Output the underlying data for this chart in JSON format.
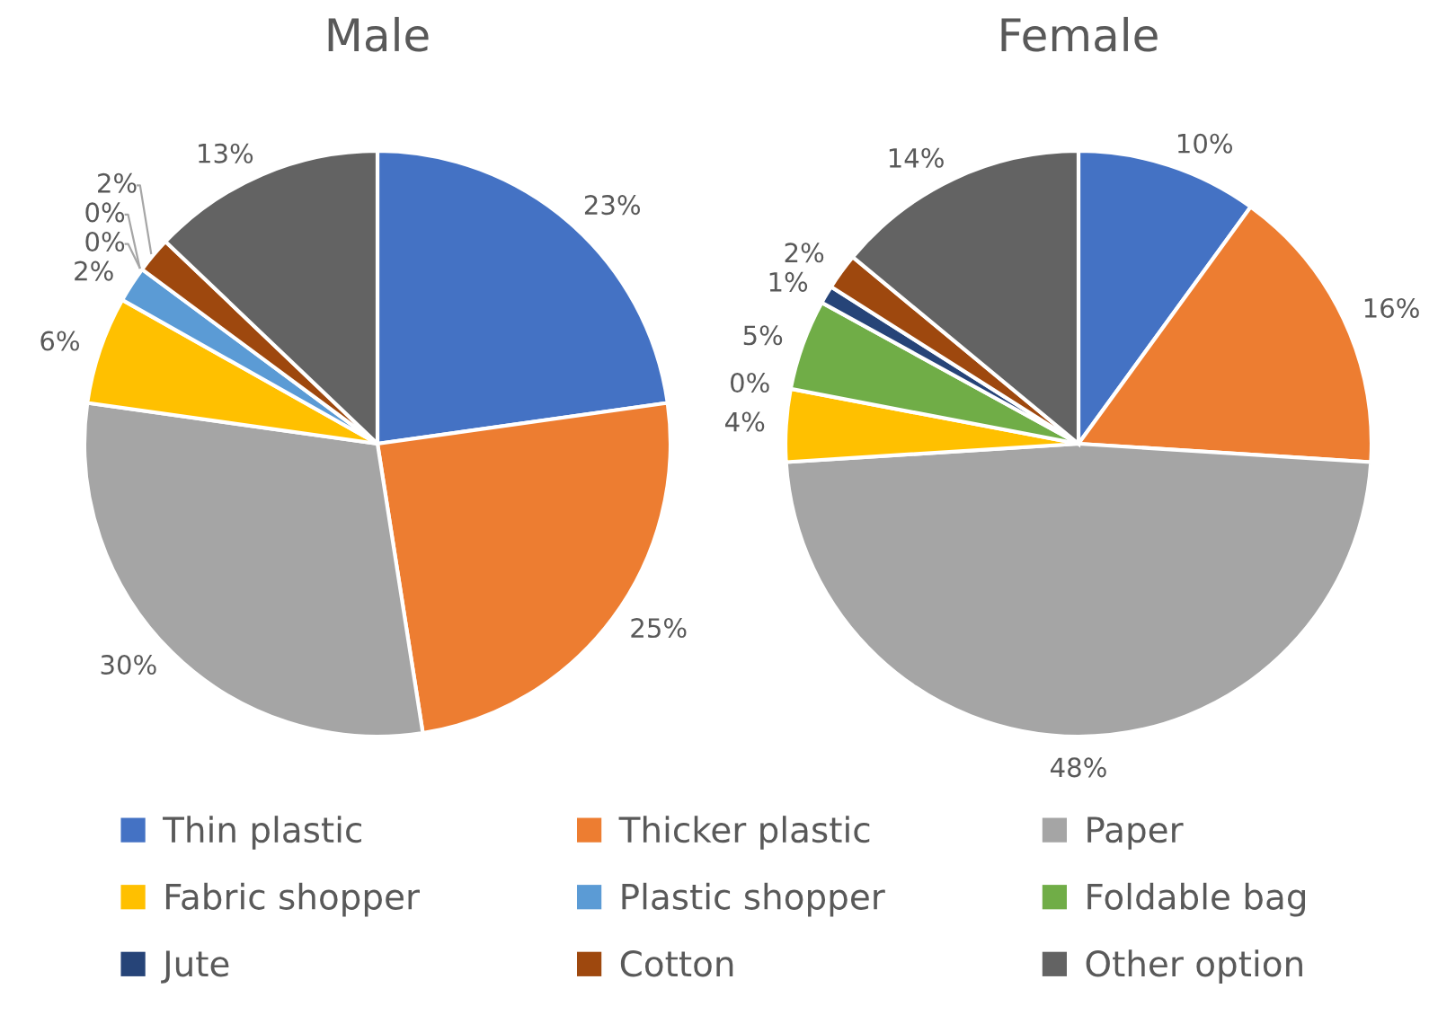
{
  "chart_data": {
    "type": "pie",
    "categories": [
      "Thin plastic",
      "Thicker plastic",
      "Paper",
      "Fabric shopper",
      "Plastic shopper",
      "Foldable bag",
      "Jute",
      "Cotton",
      "Other option"
    ],
    "colors": [
      "#4472c4",
      "#ed7d31",
      "#a5a5a5",
      "#ffc000",
      "#5b9bd5",
      "#70ad47",
      "#264478",
      "#9e480e",
      "#636363"
    ],
    "series": [
      {
        "name": "Male",
        "values": [
          23,
          25,
          30,
          6,
          2,
          0,
          0,
          2,
          13
        ],
        "value_labels": [
          "23%",
          "25%",
          "30%",
          "6%",
          "2%",
          "0%",
          "0%",
          "2%",
          "13%"
        ]
      },
      {
        "name": "Female",
        "values": [
          10,
          16,
          48,
          4,
          0,
          5,
          1,
          2,
          14
        ],
        "value_labels": [
          "10%",
          "16%",
          "48%",
          "4%",
          "0%",
          "5%",
          "1%",
          "2%",
          "14%"
        ]
      }
    ],
    "legend": "bottom"
  }
}
